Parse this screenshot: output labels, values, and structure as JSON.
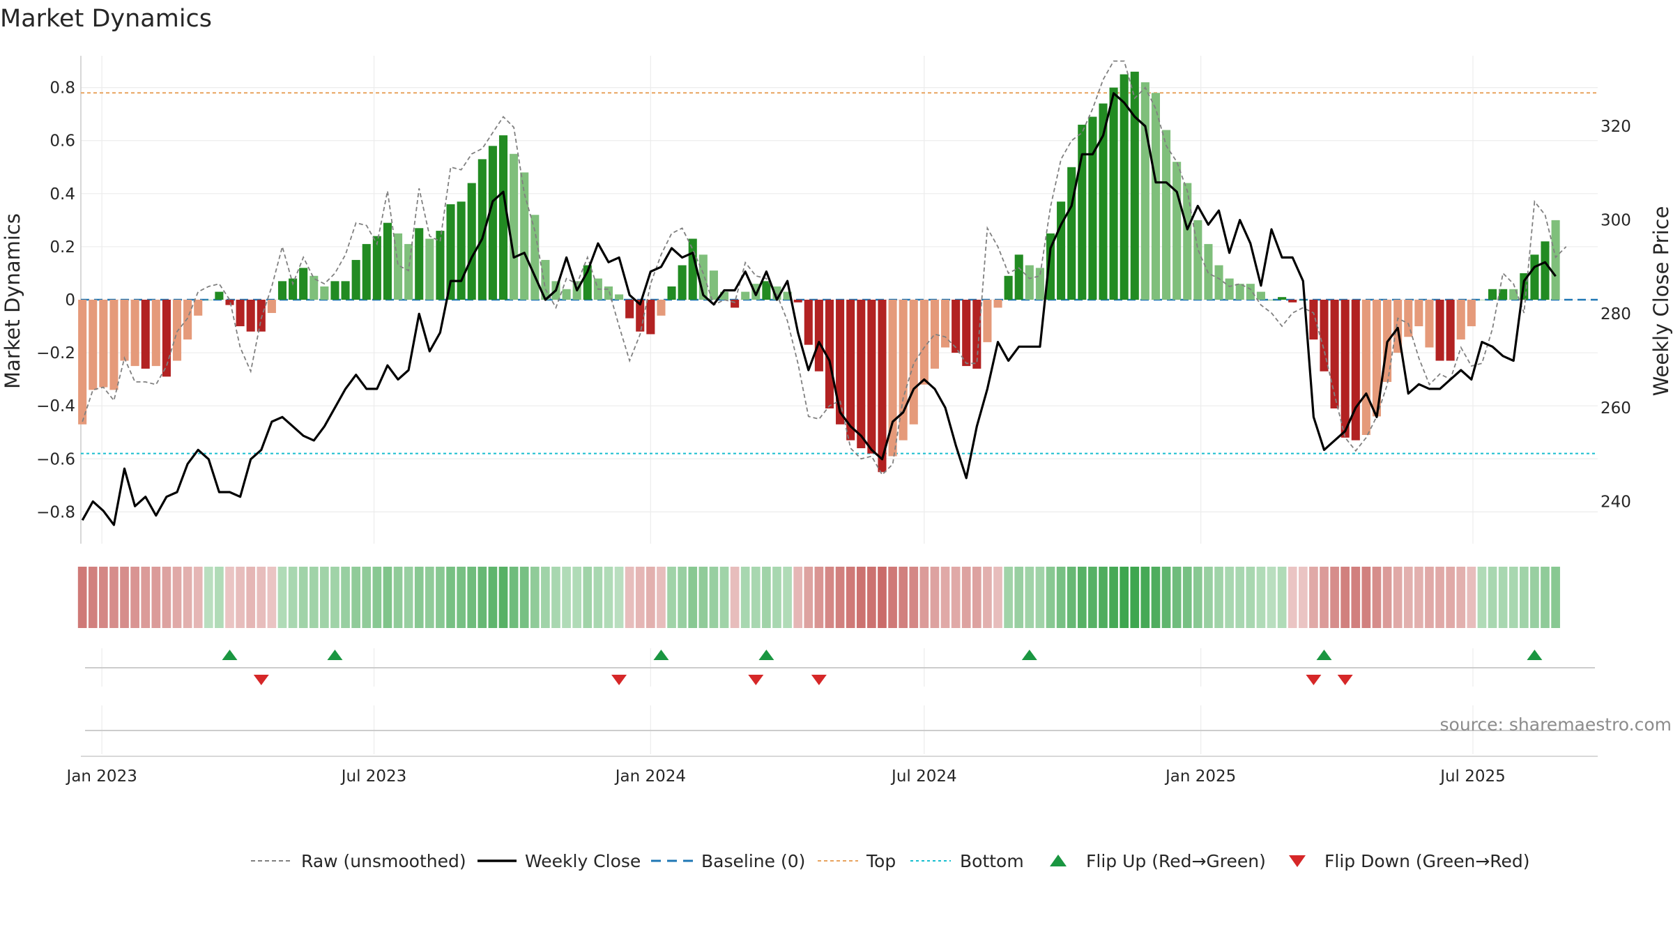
{
  "chart_data": {
    "type": "bar",
    "title": "Market Dynamics",
    "ylabel": "Market Dynamics",
    "y2label": "Weekly Close Price",
    "ylim": [
      -0.92,
      0.92
    ],
    "y2lim": [
      231,
      335
    ],
    "yticks": [
      -0.8,
      -0.6,
      -0.4,
      -0.2,
      0,
      0.2,
      0.4,
      0.6,
      0.8
    ],
    "ytick_labels": [
      "−0.8",
      "−0.6",
      "−0.4",
      "−0.2",
      "0",
      "0.2",
      "0.4",
      "0.6",
      "0.8"
    ],
    "y2ticks": [
      240,
      260,
      280,
      300,
      320
    ],
    "xlim": [
      "2022-12-18",
      "2025-09-22"
    ],
    "xticks": [
      "2023-01-01",
      "2023-07-01",
      "2024-01-01",
      "2024-07-01",
      "2025-01-01",
      "2025-07-01"
    ],
    "xtick_labels": [
      "Jan 2023",
      "Jul 2023",
      "Jan 2024",
      "Jul 2024",
      "Jan 2025",
      "Jul 2025"
    ],
    "start_date": "2022-12-19",
    "top_level": 0.78,
    "bottom_level": -0.58,
    "baseline": 0,
    "grid": true,
    "legend_position": "bottom",
    "colors": {
      "strong_green": "#228b22",
      "weak_green": "#7fbf7b",
      "strong_red": "#b22222",
      "weak_red": "#e59a7a",
      "raw": "#808080",
      "close": "#000000",
      "baseline": "#1f77b4",
      "top": "#e8a35f",
      "bottom": "#17becf",
      "flip_up": "#1a9641",
      "flip_down": "#d62728"
    },
    "bars": [
      -0.47,
      -0.34,
      -0.33,
      -0.34,
      -0.23,
      -0.25,
      -0.26,
      -0.25,
      -0.29,
      -0.23,
      -0.15,
      -0.06,
      0,
      0.03,
      -0.02,
      -0.1,
      -0.12,
      -0.12,
      -0.05,
      0.07,
      0.08,
      0.12,
      0.09,
      0.05,
      0.07,
      0.07,
      0.15,
      0.21,
      0.24,
      0.29,
      0.25,
      0.21,
      0.27,
      0.23,
      0.26,
      0.36,
      0.37,
      0.44,
      0.53,
      0.58,
      0.62,
      0.55,
      0.48,
      0.32,
      0.15,
      0.07,
      0.04,
      0.07,
      0.13,
      0.08,
      0.05,
      0.02,
      -0.07,
      -0.12,
      -0.13,
      -0.06,
      0.05,
      0.13,
      0.23,
      0.17,
      0.11,
      0.03,
      -0.03,
      0.03,
      0.06,
      0.07,
      0.05,
      0.03,
      -0.01,
      -0.17,
      -0.27,
      -0.41,
      -0.47,
      -0.53,
      -0.56,
      -0.58,
      -0.65,
      -0.59,
      -0.53,
      -0.47,
      -0.32,
      -0.26,
      -0.18,
      -0.2,
      -0.25,
      -0.26,
      -0.16,
      -0.03,
      0.09,
      0.17,
      0.13,
      0.12,
      0.25,
      0.37,
      0.5,
      0.66,
      0.69,
      0.74,
      0.8,
      0.85,
      0.86,
      0.82,
      0.78,
      0.64,
      0.52,
      0.44,
      0.3,
      0.21,
      0.13,
      0.08,
      0.06,
      0.06,
      0.03,
      0,
      0.01,
      -0.01,
      0,
      -0.15,
      -0.27,
      -0.41,
      -0.52,
      -0.53,
      -0.51,
      -0.44,
      -0.31,
      -0.2,
      -0.14,
      -0.1,
      -0.18,
      -0.23,
      -0.23,
      -0.15,
      -0.1,
      0,
      0.04,
      0.04,
      0.04,
      0.1,
      0.17,
      0.22,
      0.3
    ],
    "bar_shade": [
      "W",
      "W",
      "W",
      "W",
      "W",
      "W",
      "S",
      "W",
      "S",
      "W",
      "W",
      "W",
      "W",
      "S",
      "S",
      "S",
      "S",
      "S",
      "W",
      "S",
      "S",
      "S",
      "W",
      "W",
      "S",
      "S",
      "S",
      "S",
      "S",
      "S",
      "W",
      "W",
      "S",
      "W",
      "S",
      "S",
      "S",
      "S",
      "S",
      "S",
      "S",
      "W",
      "W",
      "W",
      "W",
      "W",
      "W",
      "W",
      "S",
      "W",
      "W",
      "W",
      "S",
      "S",
      "S",
      "W",
      "S",
      "S",
      "S",
      "W",
      "W",
      "W",
      "S",
      "W",
      "W",
      "S",
      "W",
      "W",
      "S",
      "S",
      "S",
      "S",
      "S",
      "S",
      "S",
      "S",
      "S",
      "W",
      "W",
      "W",
      "W",
      "W",
      "W",
      "S",
      "S",
      "S",
      "W",
      "W",
      "S",
      "S",
      "W",
      "W",
      "S",
      "S",
      "S",
      "S",
      "S",
      "S",
      "S",
      "S",
      "S",
      "W",
      "W",
      "W",
      "W",
      "W",
      "W",
      "W",
      "W",
      "W",
      "W",
      "W",
      "W",
      "S",
      "S",
      "S",
      "S",
      "S",
      "S",
      "S",
      "S",
      "S",
      "W",
      "W",
      "W",
      "W",
      "W",
      "W",
      "W",
      "S",
      "S",
      "W",
      "W",
      "W",
      "S",
      "S",
      "W",
      "S",
      "S",
      "S"
    ],
    "raw": [
      -0.46,
      -0.34,
      -0.33,
      -0.38,
      -0.22,
      -0.31,
      -0.31,
      -0.32,
      -0.25,
      -0.12,
      -0.07,
      0.03,
      0.05,
      0.06,
      0,
      -0.18,
      -0.27,
      -0.07,
      0.05,
      0.2,
      0.06,
      0.16,
      0.08,
      0.06,
      0.1,
      0.17,
      0.29,
      0.28,
      0.21,
      0.41,
      0.13,
      0.11,
      0.42,
      0.24,
      0.22,
      0.5,
      0.49,
      0.55,
      0.57,
      0.63,
      0.69,
      0.65,
      0.4,
      0.26,
      0.04,
      -0.03,
      0.08,
      0.06,
      0.16,
      0.04,
      0.04,
      -0.1,
      -0.23,
      -0.13,
      0.06,
      0.17,
      0.25,
      0.27,
      0.19,
      0.1,
      -0.02,
      0,
      -0.01,
      0.14,
      0.09,
      0.08,
      0.02,
      -0.08,
      -0.24,
      -0.44,
      -0.45,
      -0.4,
      -0.38,
      -0.56,
      -0.6,
      -0.59,
      -0.66,
      -0.62,
      -0.37,
      -0.24,
      -0.18,
      -0.13,
      -0.14,
      -0.18,
      -0.24,
      -0.24,
      0.27,
      0.2,
      0.1,
      0.12,
      0.08,
      0.09,
      0.35,
      0.53,
      0.6,
      0.63,
      0.72,
      0.83,
      0.9,
      0.9,
      0.76,
      0.8,
      0.72,
      0.58,
      0.52,
      0.41,
      0.19,
      0.1,
      0.08,
      0.05,
      0.06,
      0.04,
      -0.02,
      -0.05,
      -0.1,
      -0.05,
      -0.03,
      -0.05,
      -0.19,
      -0.36,
      -0.52,
      -0.57,
      -0.52,
      -0.44,
      -0.32,
      -0.07,
      -0.09,
      -0.22,
      -0.32,
      -0.28,
      -0.3,
      -0.18,
      -0.25,
      -0.24,
      -0.11,
      0.1,
      0.06,
      -0.05,
      0.37,
      0.32,
      0.16,
      0.2
    ],
    "close": [
      236,
      240,
      238,
      235,
      247,
      239,
      241,
      237,
      241,
      242,
      248,
      251,
      249,
      242,
      242,
      241,
      249,
      251,
      257,
      258,
      256,
      254,
      253,
      256,
      260,
      264,
      267,
      264,
      264,
      269,
      266,
      268,
      280,
      272,
      276,
      287,
      287,
      292,
      296,
      304,
      306,
      292,
      293,
      288,
      283,
      285,
      292,
      285,
      289,
      295,
      291,
      292,
      284,
      282,
      289,
      290,
      294,
      292,
      293,
      284,
      282,
      285,
      285,
      289,
      284,
      289,
      283,
      287,
      276,
      268,
      274,
      270,
      259,
      256,
      254,
      251,
      249,
      257,
      259,
      264,
      266,
      264,
      260,
      252,
      245,
      256,
      264,
      274,
      270,
      273,
      273,
      273,
      294,
      299,
      303,
      314,
      314,
      318,
      327,
      325,
      322,
      320,
      308,
      308,
      306,
      298,
      303,
      299,
      302,
      293,
      300,
      295,
      286,
      298,
      292,
      292,
      287,
      258,
      251,
      253,
      255,
      260,
      263,
      258,
      274,
      277,
      263,
      265,
      264,
      264,
      266,
      268,
      266,
      274,
      273,
      271,
      270,
      287,
      290,
      291,
      288
    ],
    "strip": [
      -0.7,
      -0.65,
      -0.6,
      -0.55,
      -0.55,
      -0.5,
      -0.45,
      -0.45,
      -0.4,
      -0.35,
      -0.3,
      -0.25,
      0.15,
      0.2,
      -0.15,
      -0.2,
      -0.25,
      -0.2,
      -0.15,
      0.2,
      0.25,
      0.3,
      0.3,
      0.3,
      0.3,
      0.35,
      0.4,
      0.4,
      0.45,
      0.5,
      0.4,
      0.35,
      0.45,
      0.4,
      0.45,
      0.55,
      0.55,
      0.6,
      0.65,
      0.7,
      0.75,
      0.6,
      0.55,
      0.4,
      0.3,
      0.25,
      0.2,
      0.2,
      0.3,
      0.25,
      0.2,
      0.15,
      -0.2,
      -0.25,
      -0.3,
      -0.2,
      0.3,
      0.35,
      0.45,
      0.4,
      0.35,
      0.3,
      -0.2,
      0.25,
      0.25,
      0.3,
      0.25,
      0.2,
      -0.25,
      -0.4,
      -0.5,
      -0.6,
      -0.65,
      -0.7,
      -0.75,
      -0.75,
      -0.8,
      -0.7,
      -0.65,
      -0.6,
      -0.45,
      -0.4,
      -0.35,
      -0.35,
      -0.4,
      -0.4,
      -0.3,
      -0.2,
      0.3,
      0.35,
      0.3,
      0.3,
      0.45,
      0.55,
      0.65,
      0.75,
      0.75,
      0.8,
      0.85,
      0.9,
      0.9,
      0.85,
      0.8,
      0.7,
      0.6,
      0.55,
      0.45,
      0.35,
      0.3,
      0.25,
      0.25,
      0.25,
      0.2,
      0.15,
      0.2,
      -0.15,
      -0.15,
      -0.35,
      -0.45,
      -0.55,
      -0.65,
      -0.65,
      -0.65,
      -0.55,
      -0.45,
      -0.35,
      -0.3,
      -0.3,
      -0.35,
      -0.35,
      -0.35,
      -0.3,
      -0.2,
      0.2,
      0.25,
      0.25,
      0.25,
      0.3,
      0.35,
      0.4,
      0.45
    ],
    "flip_up_dates": [
      "2023-03-27",
      "2023-06-05",
      "2024-01-08",
      "2024-03-18",
      "2024-09-09",
      "2025-03-24",
      "2025-08-11"
    ],
    "flip_down_dates": [
      "2023-04-17",
      "2023-12-11",
      "2024-03-11",
      "2024-04-22",
      "2025-03-17",
      "2025-04-07"
    ],
    "legend": [
      {
        "label": "Raw (unsmoothed)",
        "kind": "raw"
      },
      {
        "label": "Weekly Close",
        "kind": "close"
      },
      {
        "label": "Baseline (0)",
        "kind": "baseline"
      },
      {
        "label": "Top",
        "kind": "top"
      },
      {
        "label": "Bottom",
        "kind": "bottom"
      },
      {
        "label": "Flip Up (Red→Green)",
        "kind": "flip_up"
      },
      {
        "label": "Flip Down (Green→Red)",
        "kind": "flip_down"
      }
    ],
    "source": "source: sharemaestro.com"
  }
}
